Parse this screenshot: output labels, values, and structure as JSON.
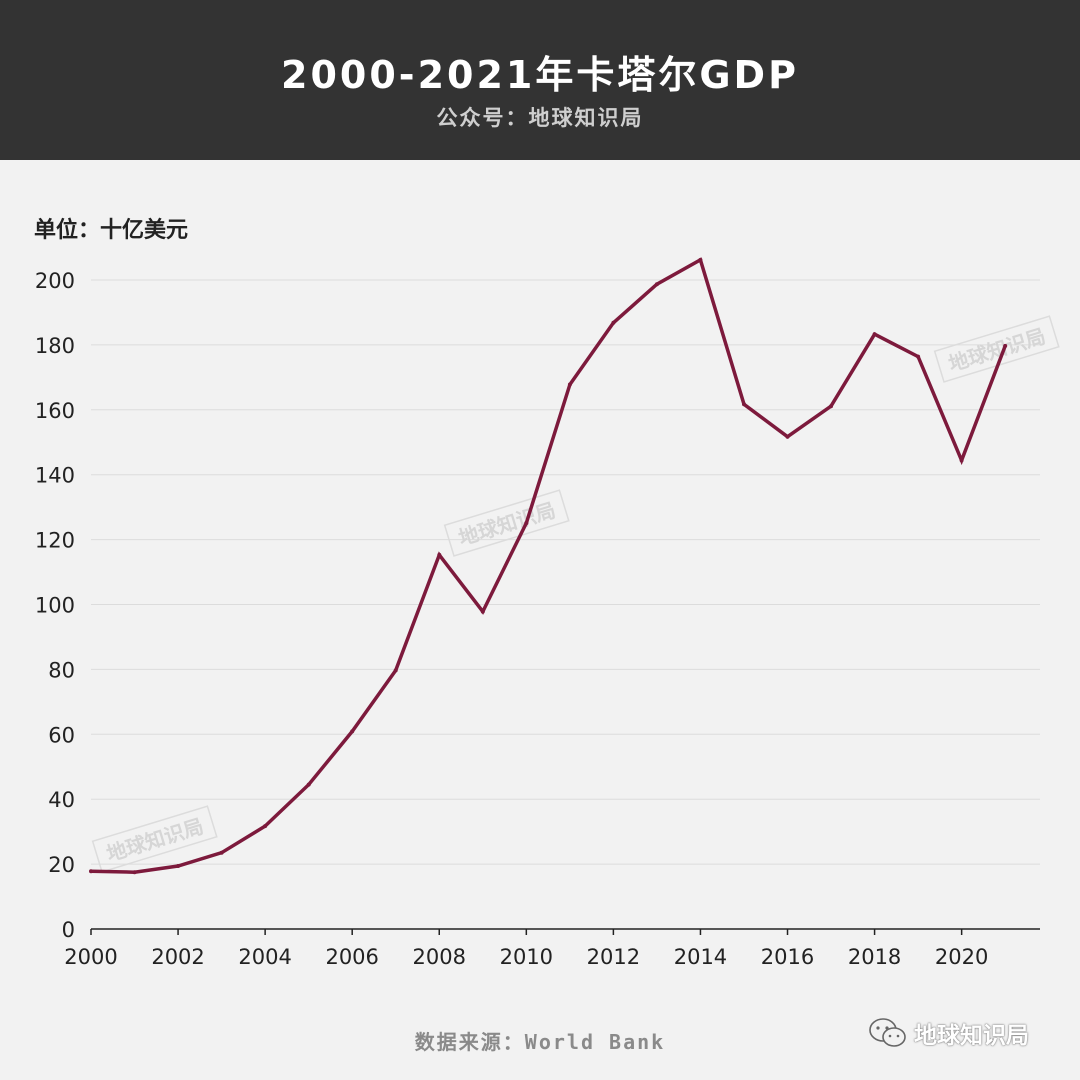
{
  "header": {
    "title": "2000-2021年卡塔尔GDP",
    "subtitle": "公众号：地球知识局"
  },
  "unit_label": "单位：十亿美元",
  "source": "数据来源：World Bank",
  "brand": {
    "name": "地球知识局",
    "icon": "wechat-icon"
  },
  "watermark": "地球知识局",
  "colors": {
    "line": "#7d1a3c",
    "header_bg": "#333333",
    "background": "#f2f2f2",
    "grid": "#dcdcdc"
  },
  "chart_data": {
    "type": "line",
    "x": [
      2000,
      2001,
      2002,
      2003,
      2004,
      2005,
      2006,
      2007,
      2008,
      2009,
      2010,
      2011,
      2012,
      2013,
      2014,
      2015,
      2016,
      2017,
      2018,
      2019,
      2020,
      2021
    ],
    "values": [
      17.8,
      17.5,
      19.4,
      23.5,
      31.7,
      44.5,
      60.9,
      79.7,
      115.3,
      97.8,
      125.1,
      167.8,
      186.8,
      198.7,
      206.2,
      161.7,
      151.7,
      161.1,
      183.3,
      176.4,
      144.4,
      179.7
    ],
    "xticks": [
      "2000",
      "2002",
      "2004",
      "2006",
      "2008",
      "2010",
      "2012",
      "2014",
      "2016",
      "2018",
      "2020"
    ],
    "yticks": [
      "0",
      "20",
      "40",
      "60",
      "80",
      "100",
      "120",
      "140",
      "160",
      "180",
      "200"
    ],
    "xlim": [
      2000,
      2021.8
    ],
    "ylim": [
      0,
      200
    ],
    "grid": true,
    "legend": "none"
  }
}
